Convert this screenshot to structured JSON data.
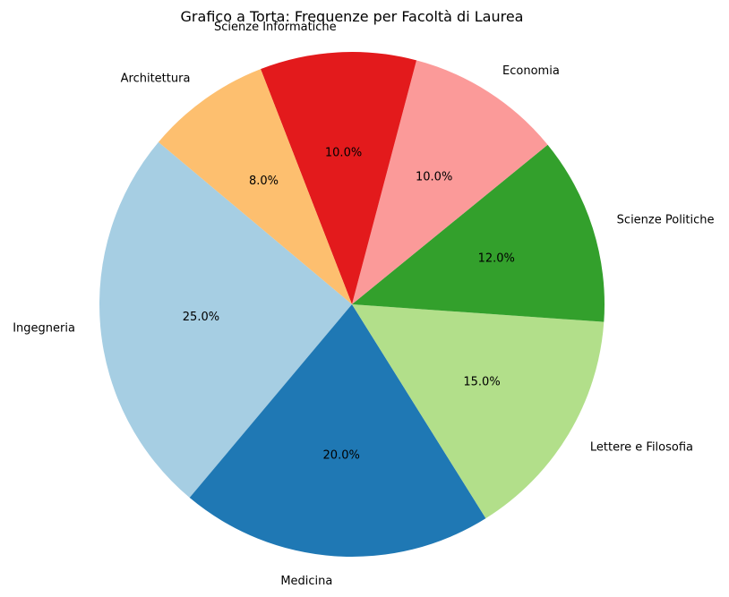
{
  "chart_data": {
    "type": "pie",
    "title": "Grafico a Torta: Frequenze per Facoltà di Laurea",
    "start_angle_deg": 140,
    "direction": "counterclockwise",
    "slices": [
      {
        "label": "Ingegneria",
        "value": 25.0,
        "pct_text": "25.0%",
        "color": "#a6cee3"
      },
      {
        "label": "Medicina",
        "value": 20.0,
        "pct_text": "20.0%",
        "color": "#1f78b4"
      },
      {
        "label": "Lettere e Filosofia",
        "value": 15.0,
        "pct_text": "15.0%",
        "color": "#b2df8a"
      },
      {
        "label": "Scienze Politiche",
        "value": 12.0,
        "pct_text": "12.0%",
        "color": "#33a02c"
      },
      {
        "label": "Economia",
        "value": 10.0,
        "pct_text": "10.0%",
        "color": "#fb9a99"
      },
      {
        "label": "Scienze Informatiche",
        "value": 10.0,
        "pct_text": "10.0%",
        "color": "#e31a1c"
      },
      {
        "label": "Architettura",
        "value": 8.0,
        "pct_text": "8.0%",
        "color": "#fdbf6f"
      }
    ]
  }
}
